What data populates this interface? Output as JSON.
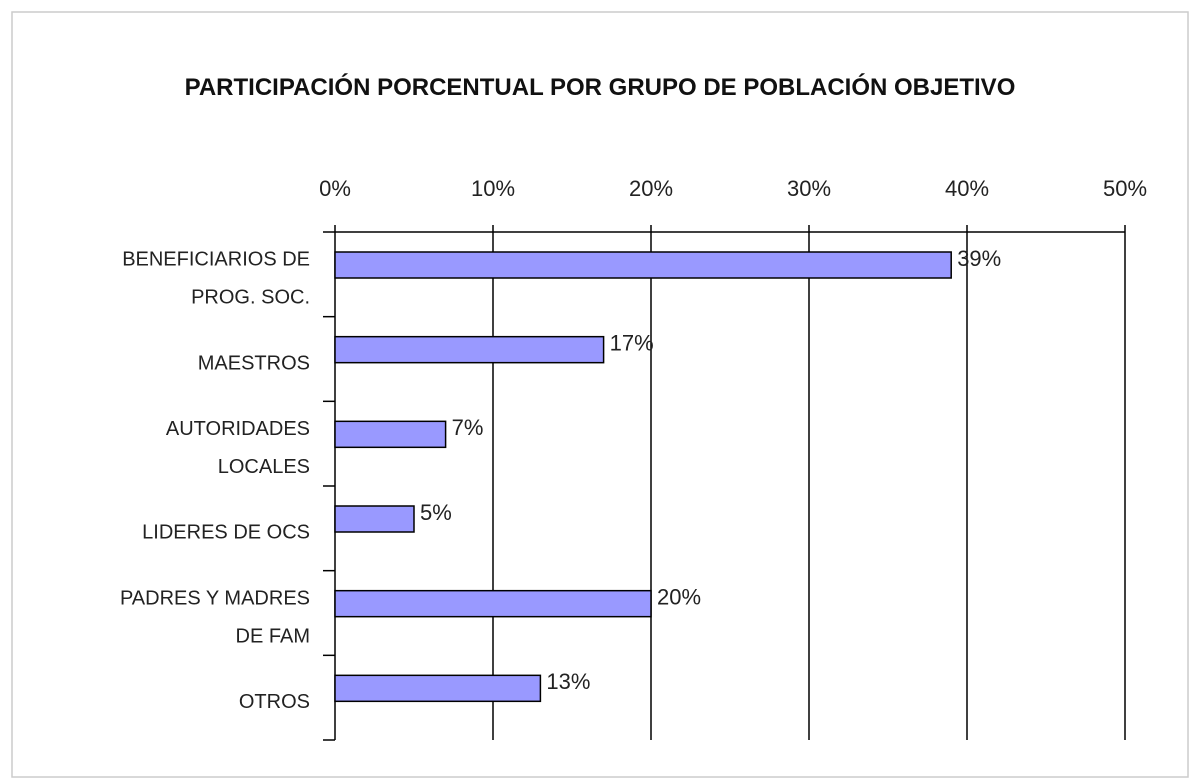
{
  "chart_data": {
    "type": "bar",
    "orientation": "horizontal",
    "title": "PARTICIPACIÓN PORCENTUAL POR GRUPO DE POBLACIÓN OBJETIVO",
    "categories": [
      [
        "BENEFICIARIOS DE",
        "PROG. SOC."
      ],
      [
        "MAESTROS"
      ],
      [
        "AUTORIDADES",
        "LOCALES"
      ],
      [
        "LIDERES DE OCS"
      ],
      [
        "PADRES Y MADRES",
        "DE FAM"
      ],
      [
        "OTROS"
      ]
    ],
    "values": [
      39,
      17,
      7,
      5,
      20,
      13
    ],
    "value_labels": [
      "39%",
      "17%",
      "7%",
      "5%",
      "20%",
      "13%"
    ],
    "color": "#9999ff",
    "xlim": [
      0,
      50
    ],
    "xticks": [
      {
        "value": 0,
        "label": "0%"
      },
      {
        "value": 10,
        "label": "10%"
      },
      {
        "value": 20,
        "label": "20%"
      },
      {
        "value": 30,
        "label": "30%"
      },
      {
        "value": 40,
        "label": "40%"
      },
      {
        "value": 50,
        "label": "50%"
      }
    ],
    "grid": true
  }
}
